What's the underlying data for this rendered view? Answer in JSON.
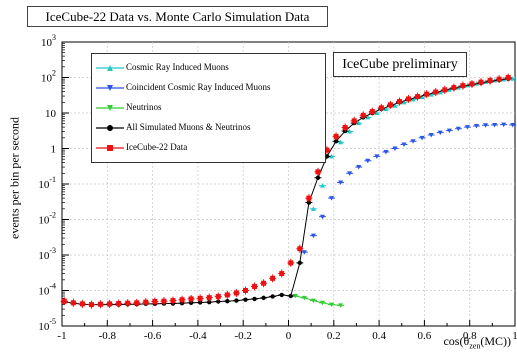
{
  "chart_data": {
    "type": "scatter",
    "title": "IceCube-22 Data vs. Monte Carlo Simulation Data",
    "annotation": "IceCube preliminary",
    "xlabel": {
      "main": "cos(θ",
      "sub": "zen",
      "tail": "(MC))"
    },
    "ylabel": "events per bin per second",
    "xlim": [
      -1,
      1
    ],
    "ylim": [
      1e-05,
      1000.0
    ],
    "yscale": "log",
    "grid": true,
    "legend_position": "top-left",
    "x_ticks": [
      "-1",
      "-0.8",
      "-0.6",
      "-0.4",
      "-0.2",
      "0",
      "0.2",
      "0.4",
      "0.6",
      "0.8",
      "1"
    ],
    "y_ticks": [
      {
        "base": "10",
        "exp": "-5"
      },
      {
        "base": "10",
        "exp": "-4"
      },
      {
        "base": "10",
        "exp": "-3"
      },
      {
        "base": "10",
        "exp": "-2"
      },
      {
        "base": "10",
        "exp": "-1"
      },
      {
        "base": "1",
        "exp": ""
      },
      {
        "base": "10",
        "exp": ""
      },
      {
        "base": "10",
        "exp": "2"
      },
      {
        "base": "10",
        "exp": "3"
      }
    ],
    "series": [
      {
        "name": "Cosmic Ray Induced Muons",
        "color": "#22c8c8",
        "marker": "triangle-up",
        "x": [
          0.11,
          0.15,
          0.19,
          0.23,
          0.27,
          0.31,
          0.35,
          0.39,
          0.43,
          0.47,
          0.51,
          0.55,
          0.59,
          0.63,
          0.67,
          0.71,
          0.75,
          0.79,
          0.83,
          0.87,
          0.91,
          0.95,
          0.99
        ],
        "y": [
          0.02,
          0.09,
          0.6,
          1.5,
          3.0,
          5.2,
          7.5,
          10,
          13,
          16,
          20,
          24,
          28,
          33,
          38,
          45,
          52,
          60,
          67,
          75,
          82,
          88,
          92
        ]
      },
      {
        "name": "Coincident Cosmic Ray Induced Muons",
        "color": "#2b55e6",
        "marker": "triangle-down",
        "x": [
          0.07,
          0.11,
          0.15,
          0.19,
          0.23,
          0.27,
          0.31,
          0.35,
          0.39,
          0.43,
          0.47,
          0.51,
          0.55,
          0.59,
          0.63,
          0.67,
          0.71,
          0.75,
          0.79,
          0.83,
          0.87,
          0.91,
          0.95,
          0.99
        ],
        "y": [
          0.0012,
          0.0035,
          0.012,
          0.04,
          0.11,
          0.2,
          0.3,
          0.45,
          0.6,
          0.8,
          1.0,
          1.3,
          1.6,
          2.0,
          2.4,
          2.8,
          3.2,
          3.6,
          4.0,
          4.3,
          4.5,
          4.6,
          4.7,
          4.6
        ]
      },
      {
        "name": "Neutrinos",
        "color": "#33cc33",
        "marker": "triangle-down",
        "x": [
          0.03,
          0.07,
          0.11,
          0.15,
          0.19,
          0.23
        ],
        "y": [
          7e-05,
          6.2e-05,
          5.2e-05,
          4.5e-05,
          4e-05,
          3.8e-05
        ]
      },
      {
        "name": "All Simulated Muons & Neutrinos",
        "color": "#000000",
        "marker": "circle",
        "x": [
          -0.99,
          -0.95,
          -0.91,
          -0.87,
          -0.83,
          -0.79,
          -0.75,
          -0.71,
          -0.67,
          -0.63,
          -0.59,
          -0.55,
          -0.51,
          -0.47,
          -0.43,
          -0.39,
          -0.35,
          -0.31,
          -0.27,
          -0.23,
          -0.19,
          -0.15,
          -0.11,
          -0.07,
          -0.03,
          0.01,
          0.05,
          0.09,
          0.13,
          0.17,
          0.21,
          0.25,
          0.29,
          0.33,
          0.37,
          0.41,
          0.45,
          0.49,
          0.53,
          0.57,
          0.61,
          0.65,
          0.69,
          0.73,
          0.77,
          0.81,
          0.85,
          0.89,
          0.93,
          0.97
        ],
        "y": [
          4.8e-05,
          4.4e-05,
          4.1e-05,
          4e-05,
          4e-05,
          4e-05,
          4e-05,
          4.1e-05,
          4.1e-05,
          4.2e-05,
          4.2e-05,
          4.3e-05,
          4.3e-05,
          4.4e-05,
          4.5e-05,
          4.6e-05,
          4.7e-05,
          4.9e-05,
          5e-05,
          5.2e-05,
          5.5e-05,
          5.8e-05,
          6.2e-05,
          6.8e-05,
          7.5e-05,
          7e-05,
          0.0006,
          0.03,
          0.15,
          0.6,
          1.6,
          3.1,
          5.2,
          7.5,
          10,
          13,
          16,
          20,
          24,
          28,
          33,
          38,
          44,
          50,
          57,
          63,
          70,
          78,
          85,
          92
        ]
      },
      {
        "name": "IceCube-22 Data",
        "color": "#ee1111",
        "marker": "square",
        "x": [
          -0.99,
          -0.95,
          -0.91,
          -0.87,
          -0.83,
          -0.79,
          -0.75,
          -0.71,
          -0.67,
          -0.63,
          -0.59,
          -0.55,
          -0.51,
          -0.47,
          -0.43,
          -0.39,
          -0.35,
          -0.31,
          -0.27,
          -0.23,
          -0.19,
          -0.15,
          -0.11,
          -0.07,
          -0.03,
          0.01,
          0.05,
          0.09,
          0.13,
          0.17,
          0.21,
          0.25,
          0.29,
          0.33,
          0.37,
          0.41,
          0.45,
          0.49,
          0.53,
          0.57,
          0.61,
          0.65,
          0.69,
          0.73,
          0.77,
          0.81,
          0.85,
          0.89,
          0.93,
          0.97
        ],
        "y": [
          5e-05,
          4.5e-05,
          4.2e-05,
          4e-05,
          4.1e-05,
          4.2e-05,
          4.3e-05,
          4.4e-05,
          4.5e-05,
          4.7e-05,
          4.9e-05,
          5e-05,
          5.2e-05,
          5.5e-05,
          5.8e-05,
          6e-05,
          6.3e-05,
          6.8e-05,
          7.5e-05,
          8.5e-05,
          0.0001,
          0.00013,
          0.00016,
          0.00022,
          0.0003,
          0.0006,
          0.0015,
          0.04,
          0.22,
          0.9,
          2.2,
          3.9,
          6.0,
          8.6,
          11,
          14,
          17,
          21,
          25,
          29,
          34,
          39,
          45,
          52,
          59,
          66,
          74,
          82,
          90,
          100
        ]
      }
    ]
  }
}
